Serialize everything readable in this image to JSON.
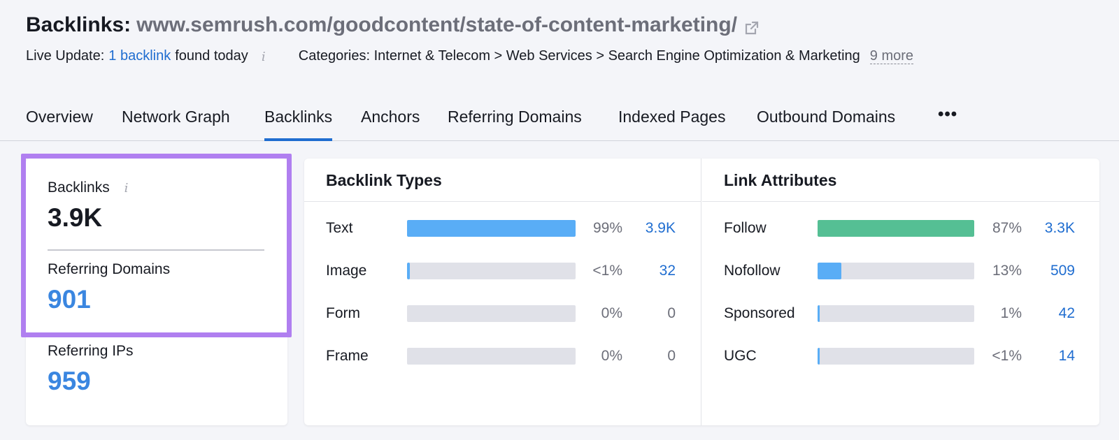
{
  "header": {
    "title_label": "Backlinks:",
    "title_url": "www.semrush.com/goodcontent/state-of-content-marketing/",
    "live_update_prefix": "Live Update:",
    "live_update_link": "1 backlink",
    "live_update_suffix": "found today",
    "info_glyph": "i",
    "categories": "Categories: Internet & Telecom > Web Services > Search Engine Optimization & Marketing",
    "more_link": "9 more"
  },
  "tabs": [
    {
      "label": "Overview",
      "active": false
    },
    {
      "label": "Network Graph",
      "active": false
    },
    {
      "label": "Backlinks",
      "active": true
    },
    {
      "label": "Anchors",
      "active": false
    },
    {
      "label": "Referring Domains",
      "active": false
    },
    {
      "label": "Indexed Pages",
      "active": false
    },
    {
      "label": "Outbound Domains",
      "active": false
    }
  ],
  "tabs_more": "•••",
  "summary": {
    "backlinks_label": "Backlinks",
    "backlinks_value": "3.9K",
    "referring_domains_label": "Referring Domains",
    "referring_domains_value": "901",
    "referring_ips_label": "Referring IPs",
    "referring_ips_value": "959",
    "highlight_color": "#b07ff0"
  },
  "backlink_types": {
    "title": "Backlink Types",
    "bar_color": "#59adf6",
    "rows": [
      {
        "label": "Text",
        "pct": "99%",
        "count": "3.9K",
        "fill": 1.0,
        "linked": true
      },
      {
        "label": "Image",
        "pct": "<1%",
        "count": "32",
        "fill": 0.01,
        "linked": true
      },
      {
        "label": "Form",
        "pct": "0%",
        "count": "0",
        "fill": 0,
        "linked": false
      },
      {
        "label": "Frame",
        "pct": "0%",
        "count": "0",
        "fill": 0,
        "linked": false
      }
    ]
  },
  "link_attributes": {
    "title": "Link Attributes",
    "rows": [
      {
        "label": "Follow",
        "pct": "87%",
        "count": "3.3K",
        "fill": 1.0,
        "color": "#55bf94",
        "linked": true
      },
      {
        "label": "Nofollow",
        "pct": "13%",
        "count": "509",
        "fill": 0.15,
        "color": "#59adf6",
        "linked": true
      },
      {
        "label": "Sponsored",
        "pct": "1%",
        "count": "42",
        "fill": 0.01,
        "color": "#59adf6",
        "linked": true
      },
      {
        "label": "UGC",
        "pct": "<1%",
        "count": "14",
        "fill": 0.01,
        "color": "#59adf6",
        "linked": true
      }
    ]
  }
}
